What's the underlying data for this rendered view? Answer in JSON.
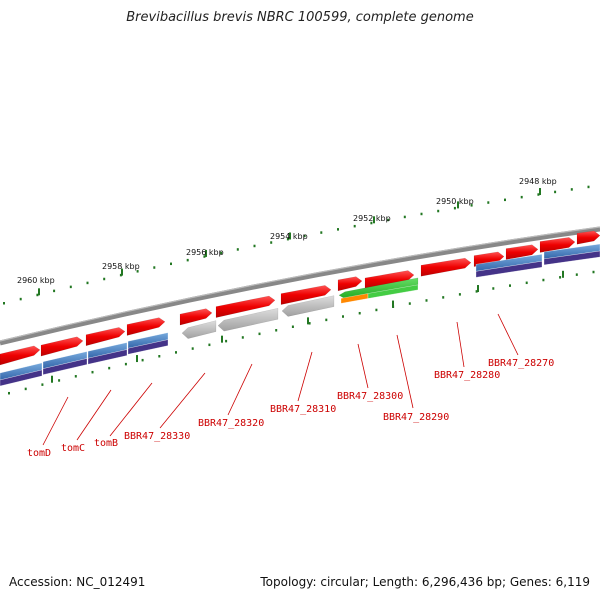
{
  "title": "Brevibacillus brevis NBRC 100599, complete genome",
  "footer": {
    "accession": "Accession: NC_012491",
    "summary": "Topology: circular; Length: 6,296,436 bp; Genes: 6,119"
  },
  "scale_labels": [
    "2948 kbp",
    "2950 kbp",
    "2952 kbp",
    "2954 kbp",
    "2956 kbp",
    "2958 kbp",
    "2960 kbp"
  ],
  "gene_labels": [
    "tomD",
    "tomC",
    "tomB",
    "BBR47_28330",
    "BBR47_28320",
    "BBR47_28310",
    "BBR47_28300",
    "BBR47_28290",
    "BBR47_28280",
    "BBR47_28270"
  ],
  "colors": {
    "gene": "#ee1111",
    "cds": "#4477bb",
    "cds_dark": "#443388",
    "pseudo": "#b8b8b8",
    "green": "#33bb33",
    "orange": "#ff8800",
    "backbone": "#888888",
    "ticks": "#227722",
    "label": "#cc0000"
  }
}
